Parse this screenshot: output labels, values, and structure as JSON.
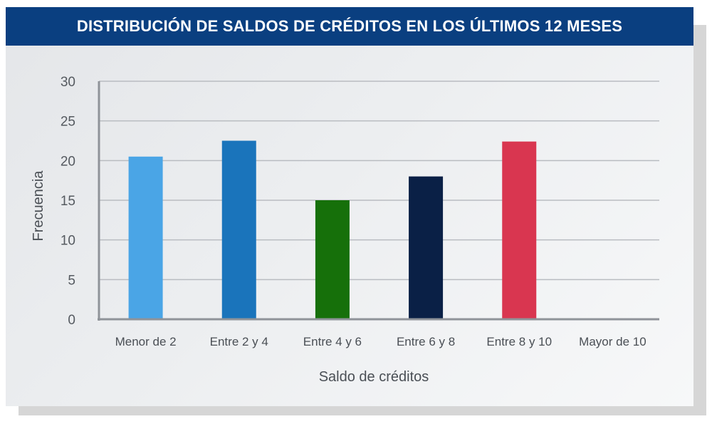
{
  "chart_data": {
    "type": "bar",
    "title": "DISTRIBUCIÓN DE SALDOS DE CRÉDITOS EN LOS ÚLTIMOS 12 MESES",
    "xlabel": "Saldo de créditos",
    "ylabel": "Frecuencia",
    "categories": [
      "Menor de 2",
      "Entre 2 y 4",
      "Entre 4 y 6",
      "Entre 6 y 8",
      "Entre 8 y 10",
      "Mayor de 10"
    ],
    "values": [
      20.5,
      22.5,
      15,
      18,
      22.4,
      0
    ],
    "colors": [
      "#4aa5e6",
      "#1a74bb",
      "#16700a",
      "#0a2046",
      "#d93650",
      "#cccccc"
    ],
    "ylim": [
      0,
      30
    ],
    "yticks": [
      0,
      5,
      10,
      15,
      20,
      25,
      30
    ],
    "grid": true,
    "legend": "none"
  }
}
